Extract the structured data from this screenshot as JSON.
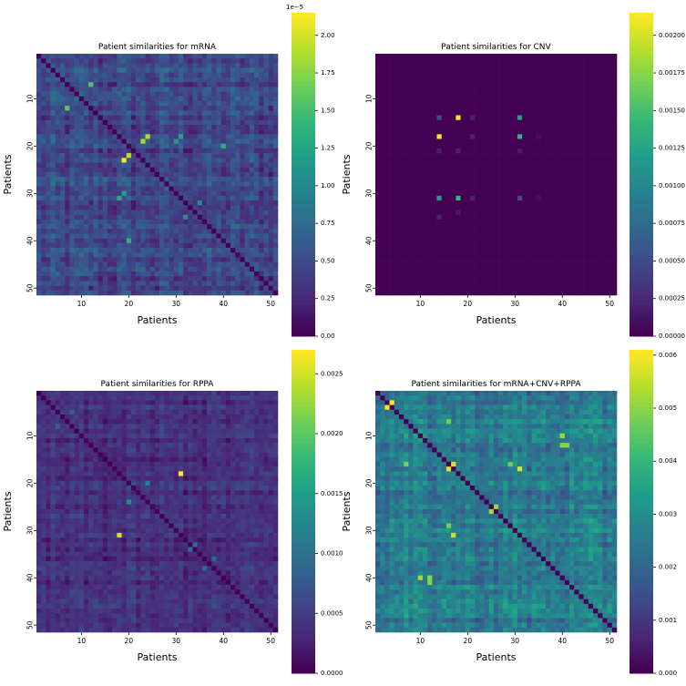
{
  "colors": {
    "viridis": [
      "#440154",
      "#482878",
      "#3e4989",
      "#31688e",
      "#26828e",
      "#1f9e89",
      "#35b779",
      "#6ece58",
      "#b5de2b",
      "#fde725"
    ],
    "background": "#ffffff",
    "text": "#000000"
  },
  "chart_data": [
    {
      "type": "heatmap",
      "title": "Patient similarities for mRNA",
      "xlabel": "Patients",
      "ylabel": "Patients",
      "n": 51,
      "x_ticks": [
        "10",
        "20",
        "30",
        "40",
        "50"
      ],
      "y_ticks": [
        "10",
        "20",
        "30",
        "40",
        "50"
      ],
      "tick_positions": [
        10,
        20,
        30,
        40,
        50
      ],
      "colorbar_range": [
        0,
        2.15
      ],
      "colorbar_ticks": [
        "0.00",
        "0.25",
        "0.50",
        "0.75",
        "1.00",
        "1.25",
        "1.50",
        "1.75",
        "2.00"
      ],
      "colorbar_tick_values": [
        0,
        0.25,
        0.5,
        0.75,
        1.0,
        1.25,
        1.5,
        1.75,
        2.0
      ],
      "colorbar_offset": "1e−5",
      "base_range": [
        0.05,
        0.85
      ],
      "diagonal": 0.0,
      "hotspots": [
        [
          23,
          19,
          2.15
        ],
        [
          22,
          20,
          1.95
        ],
        [
          18,
          24,
          1.9
        ],
        [
          19,
          23,
          1.85
        ],
        [
          12,
          7,
          1.6
        ],
        [
          7,
          12,
          1.55
        ],
        [
          40,
          20,
          1.4
        ],
        [
          20,
          40,
          1.35
        ],
        [
          31,
          18,
          1.3
        ],
        [
          18,
          31,
          1.25
        ],
        [
          30,
          19,
          1.2
        ],
        [
          19,
          30,
          1.15
        ],
        [
          35,
          32,
          1.1
        ],
        [
          32,
          35,
          1.05
        ]
      ]
    },
    {
      "type": "heatmap",
      "title": "Patient similarities for CNV",
      "xlabel": "Patients",
      "ylabel": "Patients",
      "n": 51,
      "x_ticks": [
        "10",
        "20",
        "30",
        "40",
        "50"
      ],
      "y_ticks": [
        "10",
        "20",
        "30",
        "40",
        "50"
      ],
      "tick_positions": [
        10,
        20,
        30,
        40,
        50
      ],
      "colorbar_range": [
        0,
        0.00215
      ],
      "colorbar_ticks": [
        "0.00000",
        "0.00025",
        "0.00050",
        "0.00075",
        "0.00100",
        "0.00125",
        "0.00150",
        "0.00175",
        "0.00200"
      ],
      "colorbar_tick_values": [
        0,
        0.00025,
        0.0005,
        0.00075,
        0.001,
        0.00125,
        0.0015,
        0.00175,
        0.002
      ],
      "colorbar_offset": "",
      "base_range": [
        0.0,
        0.0
      ],
      "diagonal": 0.0,
      "hotspots": [
        [
          18,
          14,
          0.00215
        ],
        [
          14,
          18,
          0.00215
        ],
        [
          18,
          31,
          0.0014
        ],
        [
          31,
          18,
          0.0014
        ],
        [
          31,
          14,
          0.0012
        ],
        [
          14,
          31,
          0.0012
        ],
        [
          31,
          31,
          0.0005
        ],
        [
          14,
          14,
          0.0005
        ],
        [
          21,
          14,
          0.0002
        ],
        [
          21,
          18,
          0.0002
        ],
        [
          18,
          21,
          0.0002
        ],
        [
          14,
          21,
          0.0002
        ],
        [
          35,
          14,
          0.0002
        ],
        [
          31,
          21,
          0.0002
        ],
        [
          31,
          35,
          0.0001
        ],
        [
          18,
          35,
          0.0001
        ],
        [
          14,
          31,
          0.0012
        ],
        [
          34,
          18,
          0.00015
        ],
        [
          21,
          31,
          0.00018
        ]
      ]
    },
    {
      "type": "heatmap",
      "title": "Patient similarities for RPPA",
      "xlabel": "Patients",
      "ylabel": "Patients",
      "n": 51,
      "x_ticks": [
        "10",
        "20",
        "30",
        "40",
        "50"
      ],
      "y_ticks": [
        "10",
        "20",
        "30",
        "40",
        "50"
      ],
      "tick_positions": [
        10,
        20,
        30,
        40,
        50
      ],
      "colorbar_range": [
        0,
        0.0027
      ],
      "colorbar_ticks": [
        "0.0000",
        "0.0005",
        "0.0010",
        "0.0015",
        "0.0020",
        "0.0025"
      ],
      "colorbar_tick_values": [
        0,
        0.0005,
        0.001,
        0.0015,
        0.002,
        0.0025
      ],
      "colorbar_offset": "",
      "base_range": [
        0.0,
        0.0007
      ],
      "diagonal": 0.0,
      "hotspots": [
        [
          18,
          31,
          0.0027
        ],
        [
          31,
          18,
          0.0025
        ],
        [
          24,
          20,
          0.0013
        ],
        [
          20,
          24,
          0.0012
        ],
        [
          34,
          33,
          0.001
        ],
        [
          33,
          34,
          0.0009
        ],
        [
          38,
          36,
          0.0009
        ],
        [
          36,
          38,
          0.0009
        ],
        [
          8,
          5,
          0.0008
        ],
        [
          5,
          8,
          0.0008
        ]
      ]
    },
    {
      "type": "heatmap",
      "title": "Patient similarities for mRNA+CNV+RPPA",
      "xlabel": "Patients",
      "ylabel": "Patients",
      "n": 51,
      "x_ticks": [
        "10",
        "20",
        "30",
        "40",
        "50"
      ],
      "y_ticks": [
        "10",
        "20",
        "30",
        "40",
        "50"
      ],
      "tick_positions": [
        10,
        20,
        30,
        40,
        50
      ],
      "colorbar_range": [
        0,
        0.0061
      ],
      "colorbar_ticks": [
        "0.000",
        "0.001",
        "0.002",
        "0.003",
        "0.004",
        "0.005",
        "0.006"
      ],
      "colorbar_tick_values": [
        0,
        0.001,
        0.002,
        0.003,
        0.004,
        0.005,
        0.006
      ],
      "colorbar_offset": "",
      "base_range": [
        0.0012,
        0.0038
      ],
      "diagonal": 0.0,
      "hotspots": [
        [
          3,
          4,
          0.0061
        ],
        [
          4,
          3,
          0.0061
        ],
        [
          16,
          17,
          0.0058
        ],
        [
          17,
          16,
          0.0058
        ],
        [
          31,
          17,
          0.0057
        ],
        [
          17,
          31,
          0.0057
        ],
        [
          40,
          10,
          0.0052
        ],
        [
          10,
          40,
          0.0052
        ],
        [
          26,
          25,
          0.0052
        ],
        [
          25,
          26,
          0.0052
        ],
        [
          12,
          40,
          0.005
        ],
        [
          40,
          12,
          0.005
        ],
        [
          16,
          7,
          0.0048
        ],
        [
          7,
          16,
          0.0048
        ],
        [
          29,
          16,
          0.0048
        ],
        [
          16,
          29,
          0.0048
        ],
        [
          12,
          41,
          0.005
        ],
        [
          41,
          12,
          0.005
        ]
      ]
    }
  ]
}
